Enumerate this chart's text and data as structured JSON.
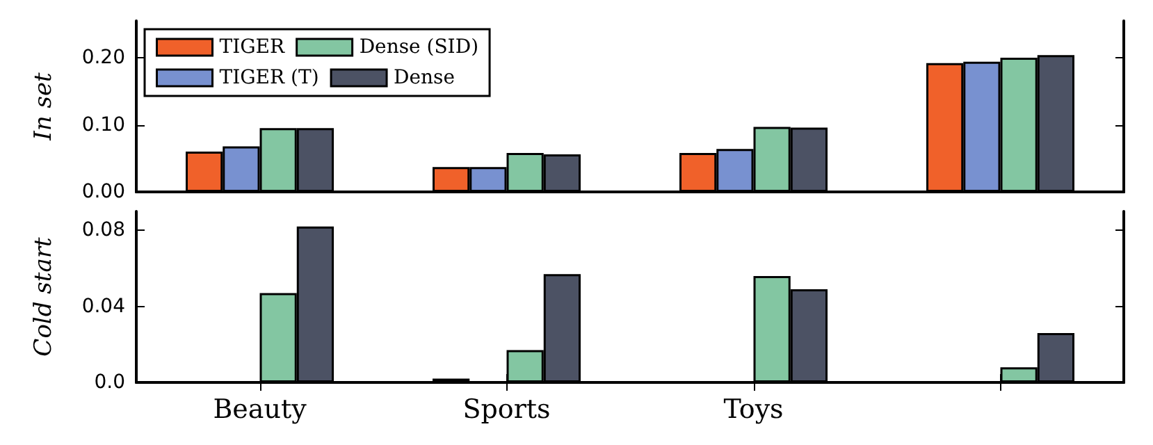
{
  "chart_data": [
    {
      "type": "bar",
      "ylabel": "In set",
      "categories": [
        null,
        null,
        null,
        null
      ],
      "series": [
        {
          "name": "TIGER",
          "color": "#f0612a",
          "values": [
            0.06,
            0.037,
            0.058,
            0.192
          ]
        },
        {
          "name": "TIGER (T)",
          "color": "#7891d0",
          "values": [
            0.068,
            0.037,
            0.064,
            0.194
          ]
        },
        {
          "name": "Dense (SID)",
          "color": "#83c6a2",
          "values": [
            0.095,
            0.058,
            0.097,
            0.2
          ]
        },
        {
          "name": "Dense",
          "color": "#4c5264",
          "values": [
            0.095,
            0.056,
            0.096,
            0.204
          ]
        }
      ],
      "ylim": [
        0,
        0.255
      ],
      "yticks": [
        {
          "value": 0,
          "label": "0.00"
        },
        {
          "value": 0.1,
          "label": "0.10"
        },
        {
          "value": 0.2,
          "label": "0.20"
        }
      ],
      "legend": "top left",
      "grid": false,
      "tick_labels": "y"
    },
    {
      "type": "bar",
      "ylabel": "Cold start",
      "categories": [
        "Beauty",
        "Sports",
        "Toys",
        null
      ],
      "series": [
        {
          "color": "#f0612a",
          "values": [
            null,
            0.002,
            null,
            null
          ]
        },
        {
          "color": "#7891d0",
          "values": [
            null,
            null,
            null,
            null
          ]
        },
        {
          "color": "#83c6a2",
          "values": [
            0.047,
            0.017,
            0.056,
            0.008
          ]
        },
        {
          "color": "#4c5264",
          "values": [
            0.082,
            0.057,
            0.049,
            0.026
          ]
        }
      ],
      "ylim": [
        0,
        0.09
      ],
      "yticks": [
        {
          "value": 0,
          "label": "0.0"
        },
        {
          "value": 0.04,
          "label": "0.04"
        },
        {
          "value": 0.08,
          "label": "0.08"
        }
      ],
      "grid": false
    }
  ]
}
